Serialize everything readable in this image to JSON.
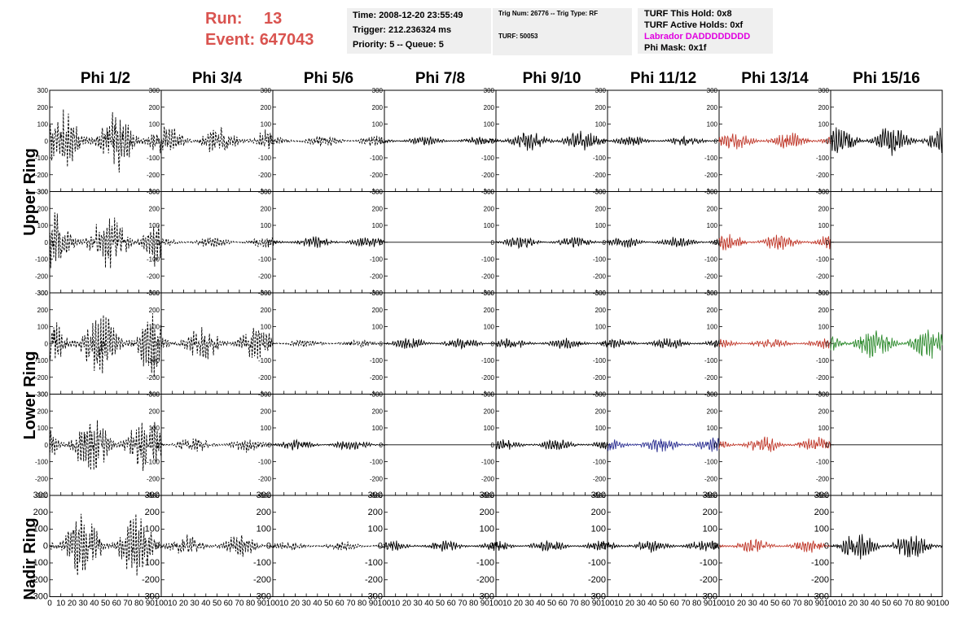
{
  "header": {
    "run_label": "Run:",
    "run_value": "13",
    "event_label": "Event:",
    "event_value": "647043",
    "time": "Time: 2008-12-20 23:55:49",
    "trigger": "Trigger: 212.236324 ms",
    "priority": "Priority: 5 -- Queue: 5",
    "trig_num": "Trig Num: 26776 -- Trig Type: RF",
    "turf": "TURF: 50053",
    "turf_this_hold": "TURF This Hold: 0x8",
    "turf_active_holds": "TURF Active Holds: 0xf",
    "labrador": "Labrador DADDDDDDDD",
    "phi_mask": "Phi Mask: 0x1f"
  },
  "colors": {
    "header_red": "#d9534f",
    "labrador_magenta": "#e000e0",
    "box_bg": "#efefef"
  },
  "columns": [
    "Phi 1/2",
    "Phi 3/4",
    "Phi 5/6",
    "Phi 7/8",
    "Phi 9/10",
    "Phi 11/12",
    "Phi 13/14",
    "Phi 15/16"
  ],
  "ring_labels": {
    "upper": "Upper Ring",
    "lower": "Lower Ring",
    "nadir": "Nadir Ring"
  },
  "chart_data": {
    "type": "line",
    "description": "5 x 8 grid of waveform panels; x axis 0-100 ns, y axis -300 to 300 mV",
    "xlim": [
      0,
      100
    ],
    "ylim": [
      -300,
      300
    ],
    "x_ticks": [
      0,
      10,
      20,
      30,
      40,
      50,
      60,
      70,
      80,
      90,
      100
    ],
    "x_tick_labels": [
      "0",
      "10",
      "20",
      "30",
      "40",
      "50",
      "60",
      "70",
      "80",
      "90",
      "100"
    ],
    "y_ticks": [
      -300,
      -200,
      -100,
      0,
      100,
      200,
      300
    ],
    "y_tick_labels": [
      "-300",
      "-200",
      "-100",
      "0",
      "100",
      "200",
      "300"
    ],
    "panels": [
      [
        {
          "amp": 160,
          "color": "#000000",
          "dashed": true,
          "flat": false
        },
        {
          "amp": 80,
          "color": "#000000",
          "dashed": true,
          "flat": false
        },
        {
          "amp": 30,
          "color": "#000000",
          "dashed": true,
          "flat": false
        },
        {
          "amp": 25,
          "color": "#000000",
          "dashed": false,
          "flat": false
        },
        {
          "amp": 55,
          "color": "#000000",
          "dashed": false,
          "flat": false
        },
        {
          "amp": 25,
          "color": "#000000",
          "dashed": false,
          "flat": false
        },
        {
          "amp": 45,
          "color": "#c0392b",
          "dashed": false,
          "flat": false
        },
        {
          "amp": 80,
          "color": "#000000",
          "dashed": false,
          "flat": false
        }
      ],
      [
        {
          "amp": 150,
          "color": "#000000",
          "dashed": true,
          "flat": false
        },
        {
          "amp": 30,
          "color": "#000000",
          "dashed": true,
          "flat": false
        },
        {
          "amp": 30,
          "color": "#000000",
          "dashed": false,
          "flat": false
        },
        {
          "amp": 0,
          "color": "#000000",
          "dashed": false,
          "flat": true
        },
        {
          "amp": 30,
          "color": "#000000",
          "dashed": false,
          "flat": false
        },
        {
          "amp": 30,
          "color": "#000000",
          "dashed": false,
          "flat": false
        },
        {
          "amp": 45,
          "color": "#c0392b",
          "dashed": false,
          "flat": false
        },
        {
          "amp": 0,
          "color": "#000000",
          "dashed": false,
          "flat": true
        }
      ],
      [
        {
          "amp": 170,
          "color": "#000000",
          "dashed": true,
          "flat": false
        },
        {
          "amp": 90,
          "color": "#000000",
          "dashed": true,
          "flat": false
        },
        {
          "amp": 20,
          "color": "#000000",
          "dashed": true,
          "flat": false
        },
        {
          "amp": 30,
          "color": "#000000",
          "dashed": false,
          "flat": false
        },
        {
          "amp": 30,
          "color": "#000000",
          "dashed": false,
          "flat": false
        },
        {
          "amp": 30,
          "color": "#000000",
          "dashed": false,
          "flat": false
        },
        {
          "amp": 30,
          "color": "#c0392b",
          "dashed": false,
          "flat": false
        },
        {
          "amp": 80,
          "color": "#2e8b2e",
          "dashed": false,
          "flat": false
        }
      ],
      [
        {
          "amp": 150,
          "color": "#000000",
          "dashed": true,
          "flat": false
        },
        {
          "amp": 40,
          "color": "#000000",
          "dashed": true,
          "flat": false
        },
        {
          "amp": 30,
          "color": "#000000",
          "dashed": false,
          "flat": false
        },
        {
          "amp": 0,
          "color": "#000000",
          "dashed": false,
          "flat": true
        },
        {
          "amp": 30,
          "color": "#000000",
          "dashed": false,
          "flat": false
        },
        {
          "amp": 40,
          "color": "#2e3192",
          "dashed": false,
          "flat": false
        },
        {
          "amp": 45,
          "color": "#c0392b",
          "dashed": false,
          "flat": false
        },
        {
          "amp": 0,
          "color": "#000000",
          "dashed": false,
          "flat": true
        }
      ],
      [
        {
          "amp": 170,
          "color": "#000000",
          "dashed": true,
          "flat": false
        },
        {
          "amp": 60,
          "color": "#000000",
          "dashed": true,
          "flat": false
        },
        {
          "amp": 25,
          "color": "#000000",
          "dashed": true,
          "flat": false
        },
        {
          "amp": 30,
          "color": "#000000",
          "dashed": false,
          "flat": false
        },
        {
          "amp": 30,
          "color": "#000000",
          "dashed": false,
          "flat": false
        },
        {
          "amp": 35,
          "color": "#000000",
          "dashed": false,
          "flat": false
        },
        {
          "amp": 35,
          "color": "#c0392b",
          "dashed": false,
          "flat": false
        },
        {
          "amp": 70,
          "color": "#000000",
          "dashed": false,
          "flat": false
        }
      ]
    ]
  }
}
